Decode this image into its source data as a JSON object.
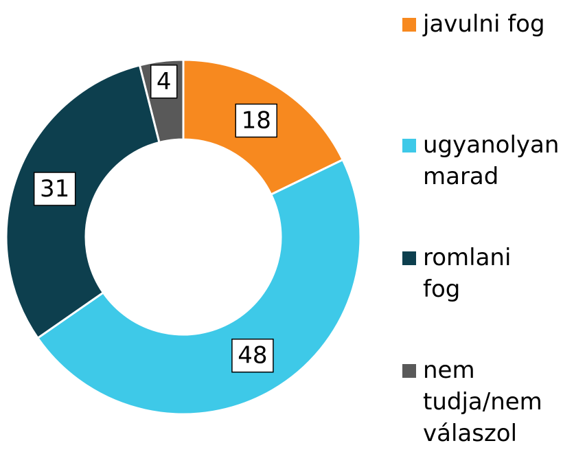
{
  "chart_data": {
    "type": "donut",
    "categories": [
      "javulni fog",
      "ugyanolyan marad",
      "romlani fog",
      "nem tudja/nem válaszol"
    ],
    "values": [
      18,
      48,
      31,
      4
    ],
    "colors": [
      "#f7891f",
      "#3ec9e8",
      "#0d3f4e",
      "#595959"
    ],
    "legend": "right"
  }
}
